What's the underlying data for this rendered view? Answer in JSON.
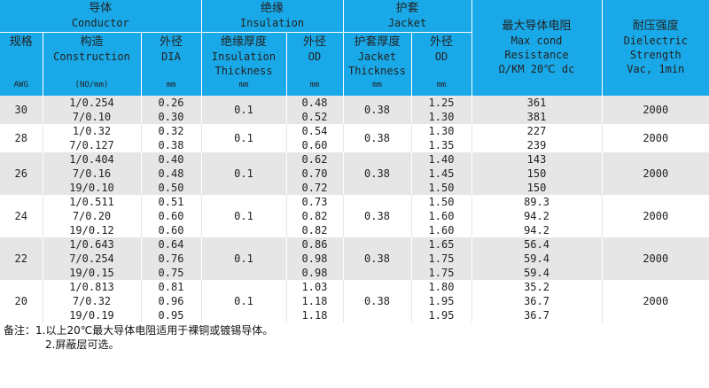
{
  "header": {
    "conductor": {
      "zh": "导体",
      "en": "Conductor"
    },
    "insulation": {
      "zh": "绝缘",
      "en": "Insulation"
    },
    "jacket": {
      "zh": "护套",
      "en": "Jacket"
    },
    "resistance": {
      "zh": "最大导体电阻",
      "en1": "Max cond",
      "en2": "Resistance",
      "en3": "Ω/KM 20℃ dc"
    },
    "dielectric": {
      "zh": "耐压强度",
      "en1": "Dielectric",
      "en2": "Strength",
      "en3": "Vac, 1min"
    },
    "spec": {
      "zh": "规格",
      "unit": "AWG"
    },
    "construction": {
      "zh": "构造",
      "en": "Construction",
      "unit": "(NO/mm)"
    },
    "cond_dia": {
      "zh": "外径",
      "en": "DIA",
      "unit": "mm"
    },
    "ins_thick": {
      "zh": "绝缘厚度",
      "en1": "Insulation",
      "en2": "Thickness",
      "unit": "mm"
    },
    "ins_od": {
      "zh": "外径",
      "en": "OD",
      "unit": "mm"
    },
    "jac_thick": {
      "zh": "护套厚度",
      "en1": "Jacket",
      "en2": "Thickness",
      "unit": "mm"
    },
    "jac_od": {
      "zh": "外径",
      "en": "OD",
      "unit": "mm"
    }
  },
  "rows": [
    {
      "awg": "30",
      "construction": [
        "1/0.254",
        "7/0.10"
      ],
      "dia": [
        "0.26",
        "0.30"
      ],
      "ins_thick": "0.1",
      "ins_od": [
        "0.48",
        "0.52"
      ],
      "jac_thick": "0.38",
      "jac_od": [
        "1.25",
        "1.30"
      ],
      "resistance": [
        "361",
        "381"
      ],
      "dielectric": "2000"
    },
    {
      "awg": "28",
      "construction": [
        "1/0.32",
        "7/0.127"
      ],
      "dia": [
        "0.32",
        "0.38"
      ],
      "ins_thick": "0.1",
      "ins_od": [
        "0.54",
        "0.60"
      ],
      "jac_thick": "0.38",
      "jac_od": [
        "1.30",
        "1.35"
      ],
      "resistance": [
        "227",
        "239"
      ],
      "dielectric": "2000"
    },
    {
      "awg": "26",
      "construction": [
        "1/0.404",
        "7/0.16",
        "19/0.10"
      ],
      "dia": [
        "0.40",
        "0.48",
        "0.50"
      ],
      "ins_thick": "0.1",
      "ins_od": [
        "0.62",
        "0.70",
        "0.72"
      ],
      "jac_thick": "0.38",
      "jac_od": [
        "1.40",
        "1.45",
        "1.50"
      ],
      "resistance": [
        "143",
        "150",
        "150"
      ],
      "dielectric": "2000"
    },
    {
      "awg": "24",
      "construction": [
        "1/0.511",
        "7/0.20",
        "19/0.12"
      ],
      "dia": [
        "0.51",
        "0.60",
        "0.60"
      ],
      "ins_thick": "0.1",
      "ins_od": [
        "0.73",
        "0.82",
        "0.82"
      ],
      "jac_thick": "0.38",
      "jac_od": [
        "1.50",
        "1.60",
        "1.60"
      ],
      "resistance": [
        "89.3",
        "94.2",
        "94.2"
      ],
      "dielectric": "2000"
    },
    {
      "awg": "22",
      "construction": [
        "1/0.643",
        "7/0.254",
        "19/0.15"
      ],
      "dia": [
        "0.64",
        "0.76",
        "0.75"
      ],
      "ins_thick": "0.1",
      "ins_od": [
        "0.86",
        "0.98",
        "0.98"
      ],
      "jac_thick": "0.38",
      "jac_od": [
        "1.65",
        "1.75",
        "1.75"
      ],
      "resistance": [
        "56.4",
        "59.4",
        "59.4"
      ],
      "dielectric": "2000"
    },
    {
      "awg": "20",
      "construction": [
        "1/0.813",
        "7/0.32",
        "19/0.19"
      ],
      "dia": [
        "0.81",
        "0.96",
        "0.95"
      ],
      "ins_thick": "0.1",
      "ins_od": [
        "1.03",
        "1.18",
        "1.18"
      ],
      "jac_thick": "0.38",
      "jac_od": [
        "1.80",
        "1.95",
        "1.95"
      ],
      "resistance": [
        "35.2",
        "36.7",
        "36.7"
      ],
      "dielectric": "2000"
    }
  ],
  "notes": {
    "label": "备注：",
    "line1": "1.以上20℃最大导体电阻适用于裸铜或镀锡导体。",
    "line2": "2.屏蔽层可选。"
  },
  "colors": {
    "header_bg": "#1aa9e8",
    "row_alt": "#e6e6e6"
  }
}
